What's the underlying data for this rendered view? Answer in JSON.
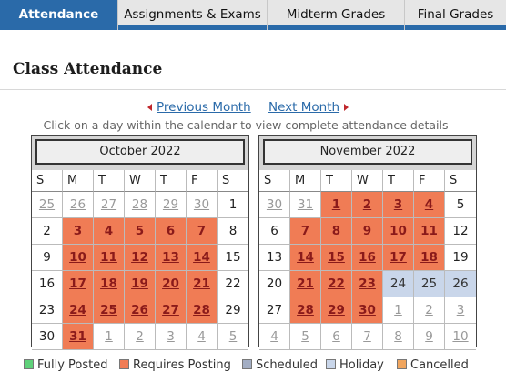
{
  "tabs": [
    {
      "label": "Attendance",
      "active": true
    },
    {
      "label": "Assignments & Exams",
      "active": false
    },
    {
      "label": "Midterm Grades",
      "active": false
    },
    {
      "label": "Final Grades",
      "active": false
    }
  ],
  "page_title": "Class Attendance",
  "nav": {
    "previous_label": "Previous Month",
    "next_label": "Next Month"
  },
  "instructions": "Click on a day within the calendar to view complete attendance details",
  "weekdays": [
    "S",
    "M",
    "T",
    "W",
    "T",
    "F",
    "S"
  ],
  "calendars": [
    {
      "title": "October 2022",
      "days": [
        {
          "label": "25",
          "type": "other"
        },
        {
          "label": "26",
          "type": "other"
        },
        {
          "label": "27",
          "type": "other"
        },
        {
          "label": "28",
          "type": "other"
        },
        {
          "label": "29",
          "type": "other"
        },
        {
          "label": "30",
          "type": "other"
        },
        {
          "label": "1",
          "type": "plain"
        },
        {
          "label": "2",
          "type": "plain"
        },
        {
          "label": "3",
          "type": "req"
        },
        {
          "label": "4",
          "type": "req"
        },
        {
          "label": "5",
          "type": "req"
        },
        {
          "label": "6",
          "type": "req"
        },
        {
          "label": "7",
          "type": "req"
        },
        {
          "label": "8",
          "type": "plain"
        },
        {
          "label": "9",
          "type": "plain"
        },
        {
          "label": "10",
          "type": "req"
        },
        {
          "label": "11",
          "type": "req"
        },
        {
          "label": "12",
          "type": "req"
        },
        {
          "label": "13",
          "type": "req"
        },
        {
          "label": "14",
          "type": "req"
        },
        {
          "label": "15",
          "type": "plain"
        },
        {
          "label": "16",
          "type": "plain"
        },
        {
          "label": "17",
          "type": "req"
        },
        {
          "label": "18",
          "type": "req"
        },
        {
          "label": "19",
          "type": "req"
        },
        {
          "label": "20",
          "type": "req"
        },
        {
          "label": "21",
          "type": "req"
        },
        {
          "label": "22",
          "type": "plain"
        },
        {
          "label": "23",
          "type": "plain"
        },
        {
          "label": "24",
          "type": "req"
        },
        {
          "label": "25",
          "type": "req"
        },
        {
          "label": "26",
          "type": "req"
        },
        {
          "label": "27",
          "type": "req"
        },
        {
          "label": "28",
          "type": "req"
        },
        {
          "label": "29",
          "type": "plain"
        },
        {
          "label": "30",
          "type": "plain"
        },
        {
          "label": "31",
          "type": "req"
        },
        {
          "label": "1",
          "type": "other"
        },
        {
          "label": "2",
          "type": "other"
        },
        {
          "label": "3",
          "type": "other"
        },
        {
          "label": "4",
          "type": "other"
        },
        {
          "label": "5",
          "type": "other"
        }
      ]
    },
    {
      "title": "November 2022",
      "days": [
        {
          "label": "30",
          "type": "other"
        },
        {
          "label": "31",
          "type": "other"
        },
        {
          "label": "1",
          "type": "req"
        },
        {
          "label": "2",
          "type": "req"
        },
        {
          "label": "3",
          "type": "req"
        },
        {
          "label": "4",
          "type": "req"
        },
        {
          "label": "5",
          "type": "plain"
        },
        {
          "label": "6",
          "type": "plain"
        },
        {
          "label": "7",
          "type": "req"
        },
        {
          "label": "8",
          "type": "req"
        },
        {
          "label": "9",
          "type": "req"
        },
        {
          "label": "10",
          "type": "req"
        },
        {
          "label": "11",
          "type": "req"
        },
        {
          "label": "12",
          "type": "plain"
        },
        {
          "label": "13",
          "type": "plain"
        },
        {
          "label": "14",
          "type": "req"
        },
        {
          "label": "15",
          "type": "req"
        },
        {
          "label": "16",
          "type": "req"
        },
        {
          "label": "17",
          "type": "req"
        },
        {
          "label": "18",
          "type": "req"
        },
        {
          "label": "19",
          "type": "plain"
        },
        {
          "label": "20",
          "type": "plain"
        },
        {
          "label": "21",
          "type": "req"
        },
        {
          "label": "22",
          "type": "req"
        },
        {
          "label": "23",
          "type": "req"
        },
        {
          "label": "24",
          "type": "sched"
        },
        {
          "label": "25",
          "type": "sched"
        },
        {
          "label": "26",
          "type": "sched"
        },
        {
          "label": "27",
          "type": "plain"
        },
        {
          "label": "28",
          "type": "req"
        },
        {
          "label": "29",
          "type": "req"
        },
        {
          "label": "30",
          "type": "req"
        },
        {
          "label": "1",
          "type": "other"
        },
        {
          "label": "2",
          "type": "other"
        },
        {
          "label": "3",
          "type": "other"
        },
        {
          "label": "4",
          "type": "other"
        },
        {
          "label": "5",
          "type": "other"
        },
        {
          "label": "6",
          "type": "other"
        },
        {
          "label": "7",
          "type": "other"
        },
        {
          "label": "8",
          "type": "other"
        },
        {
          "label": "9",
          "type": "other"
        },
        {
          "label": "10",
          "type": "other"
        }
      ]
    }
  ],
  "legend": [
    {
      "label": "Fully Posted",
      "color": "#5fd17a"
    },
    {
      "label": "Requires Posting",
      "color": "#f07c55"
    },
    {
      "label": "Scheduled",
      "color": "#a3aec4"
    },
    {
      "label": "Holiday",
      "color": "#c9d6ea"
    },
    {
      "label": "Cancelled",
      "color": "#f0a55e"
    }
  ],
  "colors": {
    "accent": "#2a6aa9",
    "requires_posting": "#f07c55",
    "holiday": "#c9d6ea",
    "nav_arrow": "#c0282d"
  }
}
